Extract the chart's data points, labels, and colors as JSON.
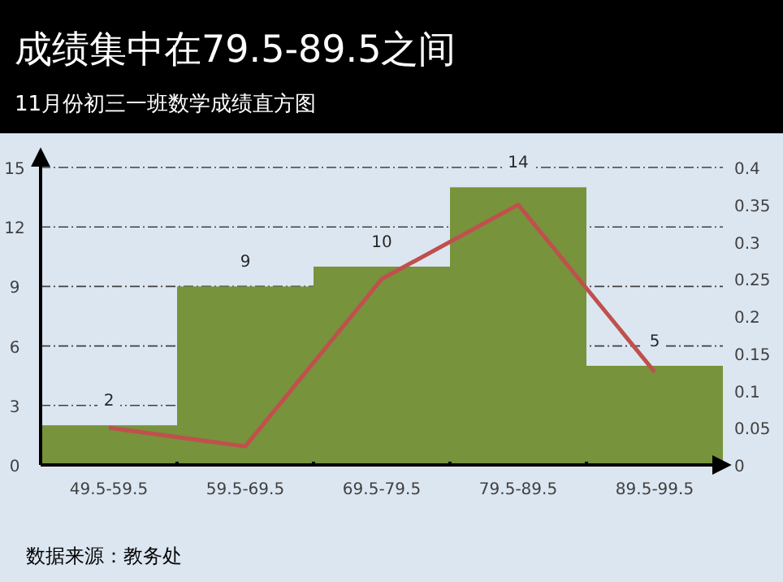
{
  "chart_data": {
    "type": "bar",
    "title": "成绩集中在79.5-89.5之间",
    "subtitle": "11月份初三一班数学成绩直方图",
    "categories": [
      "49.5-59.5",
      "59.5-69.5",
      "69.5-79.5",
      "79.5-89.5",
      "89.5-99.5"
    ],
    "series": [
      {
        "color": "#77933c",
        "values": [
          2,
          9,
          10,
          14,
          5
        ],
        "value_labels": [
          "2",
          "9",
          "10",
          "14",
          "5"
        ]
      },
      {
        "type": "line",
        "axis": "y2",
        "color": "#c0504d",
        "values": [
          0.05,
          0.025,
          0.25,
          0.35,
          0.125
        ]
      }
    ],
    "ylim": [
      0,
      15
    ],
    "yticks": [
      0,
      3,
      6,
      9,
      12,
      15
    ],
    "y2lim": [
      0,
      0.4
    ],
    "y2ticks": [
      0,
      0.05,
      0.1,
      0.15,
      0.2,
      0.25,
      0.3,
      0.35,
      0.4
    ],
    "grid": "y",
    "marker": "none",
    "annotations": [
      "数据来源：教务处"
    ]
  }
}
